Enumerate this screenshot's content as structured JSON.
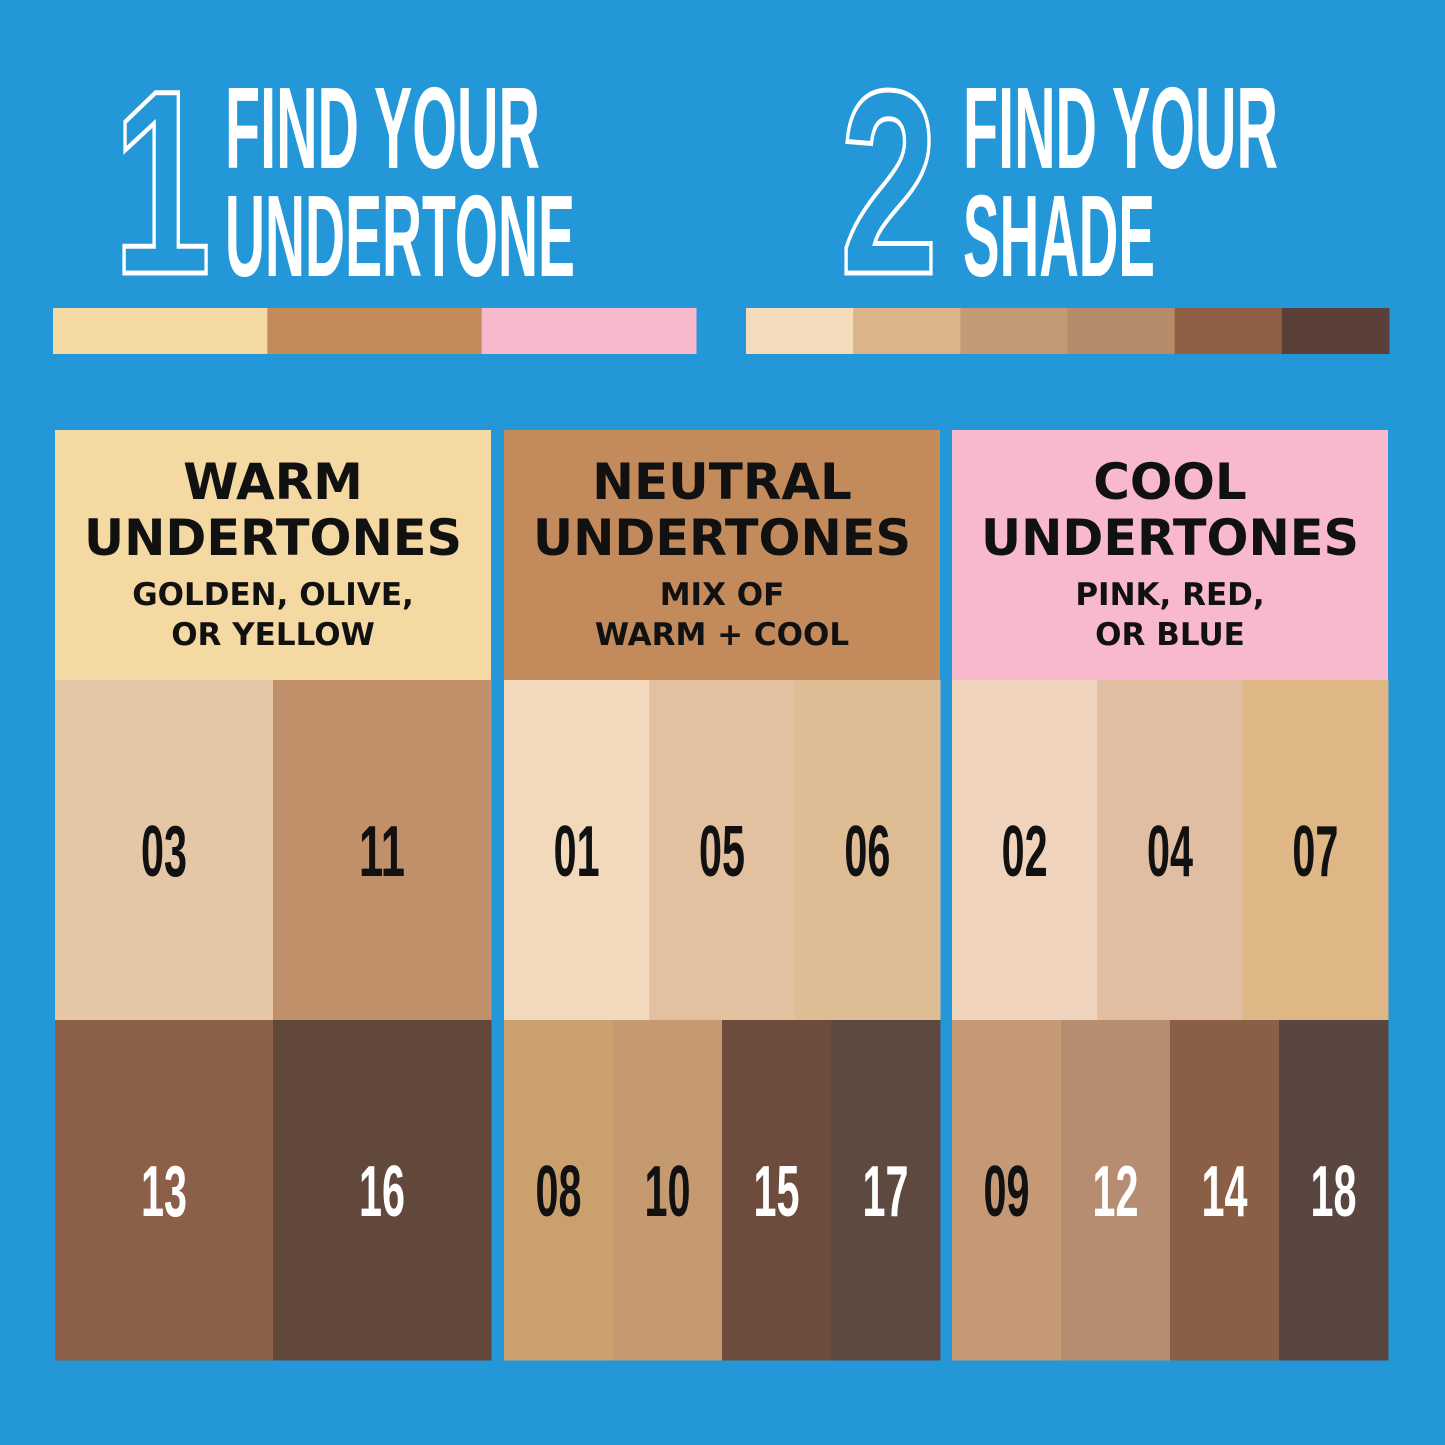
{
  "steps": [
    {
      "number": "1",
      "lines": [
        "FIND YOUR",
        "UNDERTONE"
      ]
    },
    {
      "number": "2",
      "lines": [
        "FIND YOUR",
        "SHADE"
      ]
    }
  ],
  "undertone_bar": [
    "#f5d9a3",
    "#c38a5b",
    "#f7b9cb"
  ],
  "shade_bar": [
    "#f2dcbb",
    "#dcb489",
    "#c49a74",
    "#b58b69",
    "#8e5f45",
    "#5a4039"
  ],
  "columns": [
    {
      "title": "WARM",
      "heading": "UNDERTONES",
      "description": [
        "GOLDEN, OLIVE,",
        "OR YELLOW"
      ],
      "color": "#f5d9a3",
      "rows": [
        [
          {
            "shade": "03",
            "color": "#e5c7a8",
            "text_color": "#111111"
          },
          {
            "shade": "11",
            "color": "#c0906b",
            "text_color": "#111111"
          }
        ],
        [
          {
            "shade": "13",
            "color": "#8c5f48",
            "text_color": "#ffffff"
          },
          {
            "shade": "16",
            "color": "#62473b",
            "text_color": "#ffffff"
          }
        ]
      ]
    },
    {
      "title": "NEUTRAL",
      "heading": "UNDERTONES",
      "description": [
        "MIX OF",
        "WARM + COOL"
      ],
      "color": "#c38a5b",
      "rows": [
        [
          {
            "shade": "01",
            "color": "#f2d9bb",
            "text_color": "#111111"
          },
          {
            "shade": "05",
            "color": "#e3c09f",
            "text_color": "#111111"
          },
          {
            "shade": "06",
            "color": "#dfbd94",
            "text_color": "#111111"
          }
        ],
        [
          {
            "shade": "08",
            "color": "#cba06f",
            "text_color": "#111111"
          },
          {
            "shade": "10",
            "color": "#c59a70",
            "text_color": "#111111"
          },
          {
            "shade": "15",
            "color": "#6d4c3d",
            "text_color": "#ffffff"
          },
          {
            "shade": "17",
            "color": "#5d4940",
            "text_color": "#ffffff"
          }
        ]
      ]
    },
    {
      "title": "COOL",
      "heading": "UNDERTONES",
      "description": [
        "PINK, RED,",
        "OR BLUE"
      ],
      "color": "#f7b9cb",
      "rows": [
        [
          {
            "shade": "02",
            "color": "#efd3bc",
            "text_color": "#111111"
          },
          {
            "shade": "04",
            "color": "#e1bda2",
            "text_color": "#111111"
          },
          {
            "shade": "07",
            "color": "#dfb686",
            "text_color": "#111111"
          }
        ],
        [
          {
            "shade": "09",
            "color": "#c59976",
            "text_color": "#111111"
          },
          {
            "shade": "12",
            "color": "#b68d70",
            "text_color": "#ffffff"
          },
          {
            "shade": "14",
            "color": "#8b5f46",
            "text_color": "#ffffff"
          },
          {
            "shade": "18",
            "color": "#594640",
            "text_color": "#ffffff"
          }
        ]
      ]
    }
  ]
}
